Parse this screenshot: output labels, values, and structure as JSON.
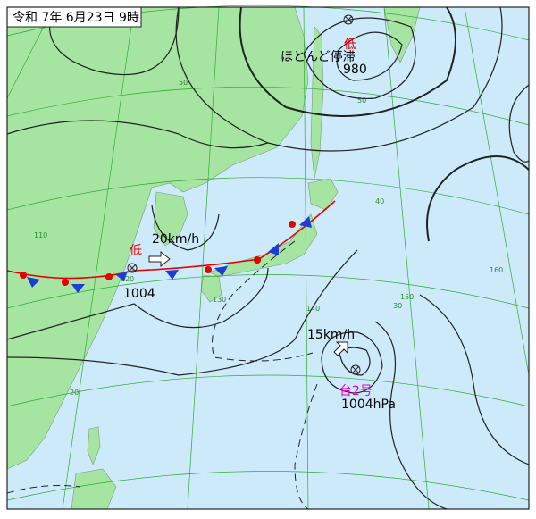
{
  "header": {
    "title": "令和 7年 6月23日 9時"
  },
  "lows": [
    {
      "label": "低",
      "pressure": "1004",
      "speed": "20km/h"
    },
    {
      "label": "低",
      "pressure": "980",
      "note": "ほとんど停滞"
    }
  ],
  "typhoon": {
    "name": "台2号",
    "pressure": "1004hPa",
    "speed": "15km/h"
  },
  "grid_labels": {
    "latitude": [
      "50",
      "50",
      "40",
      "30",
      "20"
    ],
    "longitude": [
      "110",
      "120",
      "130",
      "140",
      "150",
      "160"
    ]
  }
}
